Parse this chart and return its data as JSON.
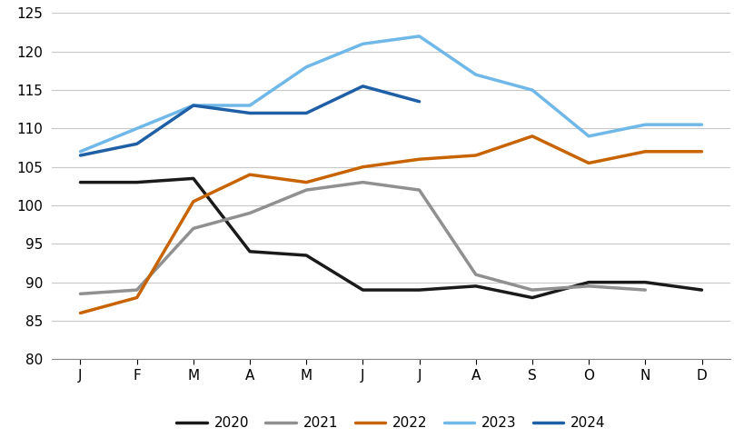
{
  "months": [
    "J",
    "F",
    "M",
    "A",
    "M",
    "J",
    "J",
    "A",
    "S",
    "O",
    "N",
    "D"
  ],
  "series": {
    "2020": [
      103,
      103,
      103.5,
      94,
      93.5,
      89,
      89,
      89.5,
      88,
      90,
      90,
      89
    ],
    "2021": [
      88.5,
      89,
      97,
      99,
      102,
      103,
      102,
      91,
      89,
      89.5,
      89,
      null
    ],
    "2022": [
      86,
      88,
      100.5,
      104,
      103,
      105,
      106,
      106.5,
      109,
      105.5,
      107,
      107
    ],
    "2023": [
      107,
      110,
      113,
      113,
      118,
      121,
      122,
      117,
      115,
      109,
      110.5,
      110.5
    ],
    "2024": [
      106.5,
      108,
      113,
      112,
      112,
      115.5,
      113.5,
      null,
      null,
      null,
      null,
      null
    ]
  },
  "colors": {
    "2020": "#1a1a1a",
    "2021": "#909090",
    "2022": "#c86400",
    "2023": "#70b8e8",
    "2024": "#1f5fa6"
  },
  "ylim": [
    80,
    125
  ],
  "yticks": [
    80,
    85,
    90,
    95,
    100,
    105,
    110,
    115,
    120,
    125
  ],
  "linewidth": 2.5,
  "background_color": "#ffffff",
  "grid_color": "#c8c8c8"
}
